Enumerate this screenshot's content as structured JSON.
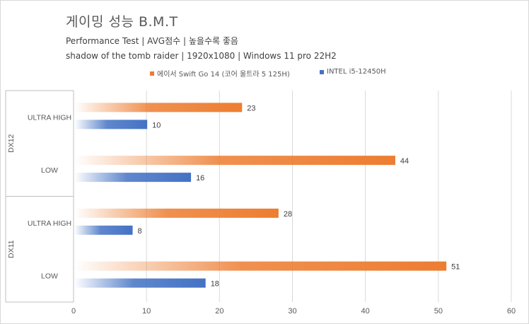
{
  "chart_data": {
    "type": "bar",
    "orientation": "horizontal",
    "title": "게이밍 성능 B.M.T",
    "subtitle_lines": [
      "Performance Test | AVG점수 | 높을수록 좋음",
      "shadow of the tomb raider | 1920x1080 | Windows 11 pro 22H2"
    ],
    "groups": [
      {
        "name": "DX12",
        "categories": [
          "ULTRA HIGH",
          "LOW"
        ]
      },
      {
        "name": "DX11",
        "categories": [
          "ULTRA HIGH",
          "LOW"
        ]
      }
    ],
    "series": [
      {
        "name": "에이서 Swift Go 14 (코어 울트라 5 125H)",
        "color": "#ED7D31",
        "values": [
          23,
          44,
          28,
          51
        ]
      },
      {
        "name": "INTEL i5-12450H",
        "color": "#4472C4",
        "values": [
          10,
          16,
          8,
          18
        ]
      }
    ],
    "xlim": [
      0,
      60
    ],
    "xticks": [
      0,
      10,
      20,
      30,
      40,
      50,
      60
    ],
    "grid": true,
    "legend_position": "top"
  }
}
